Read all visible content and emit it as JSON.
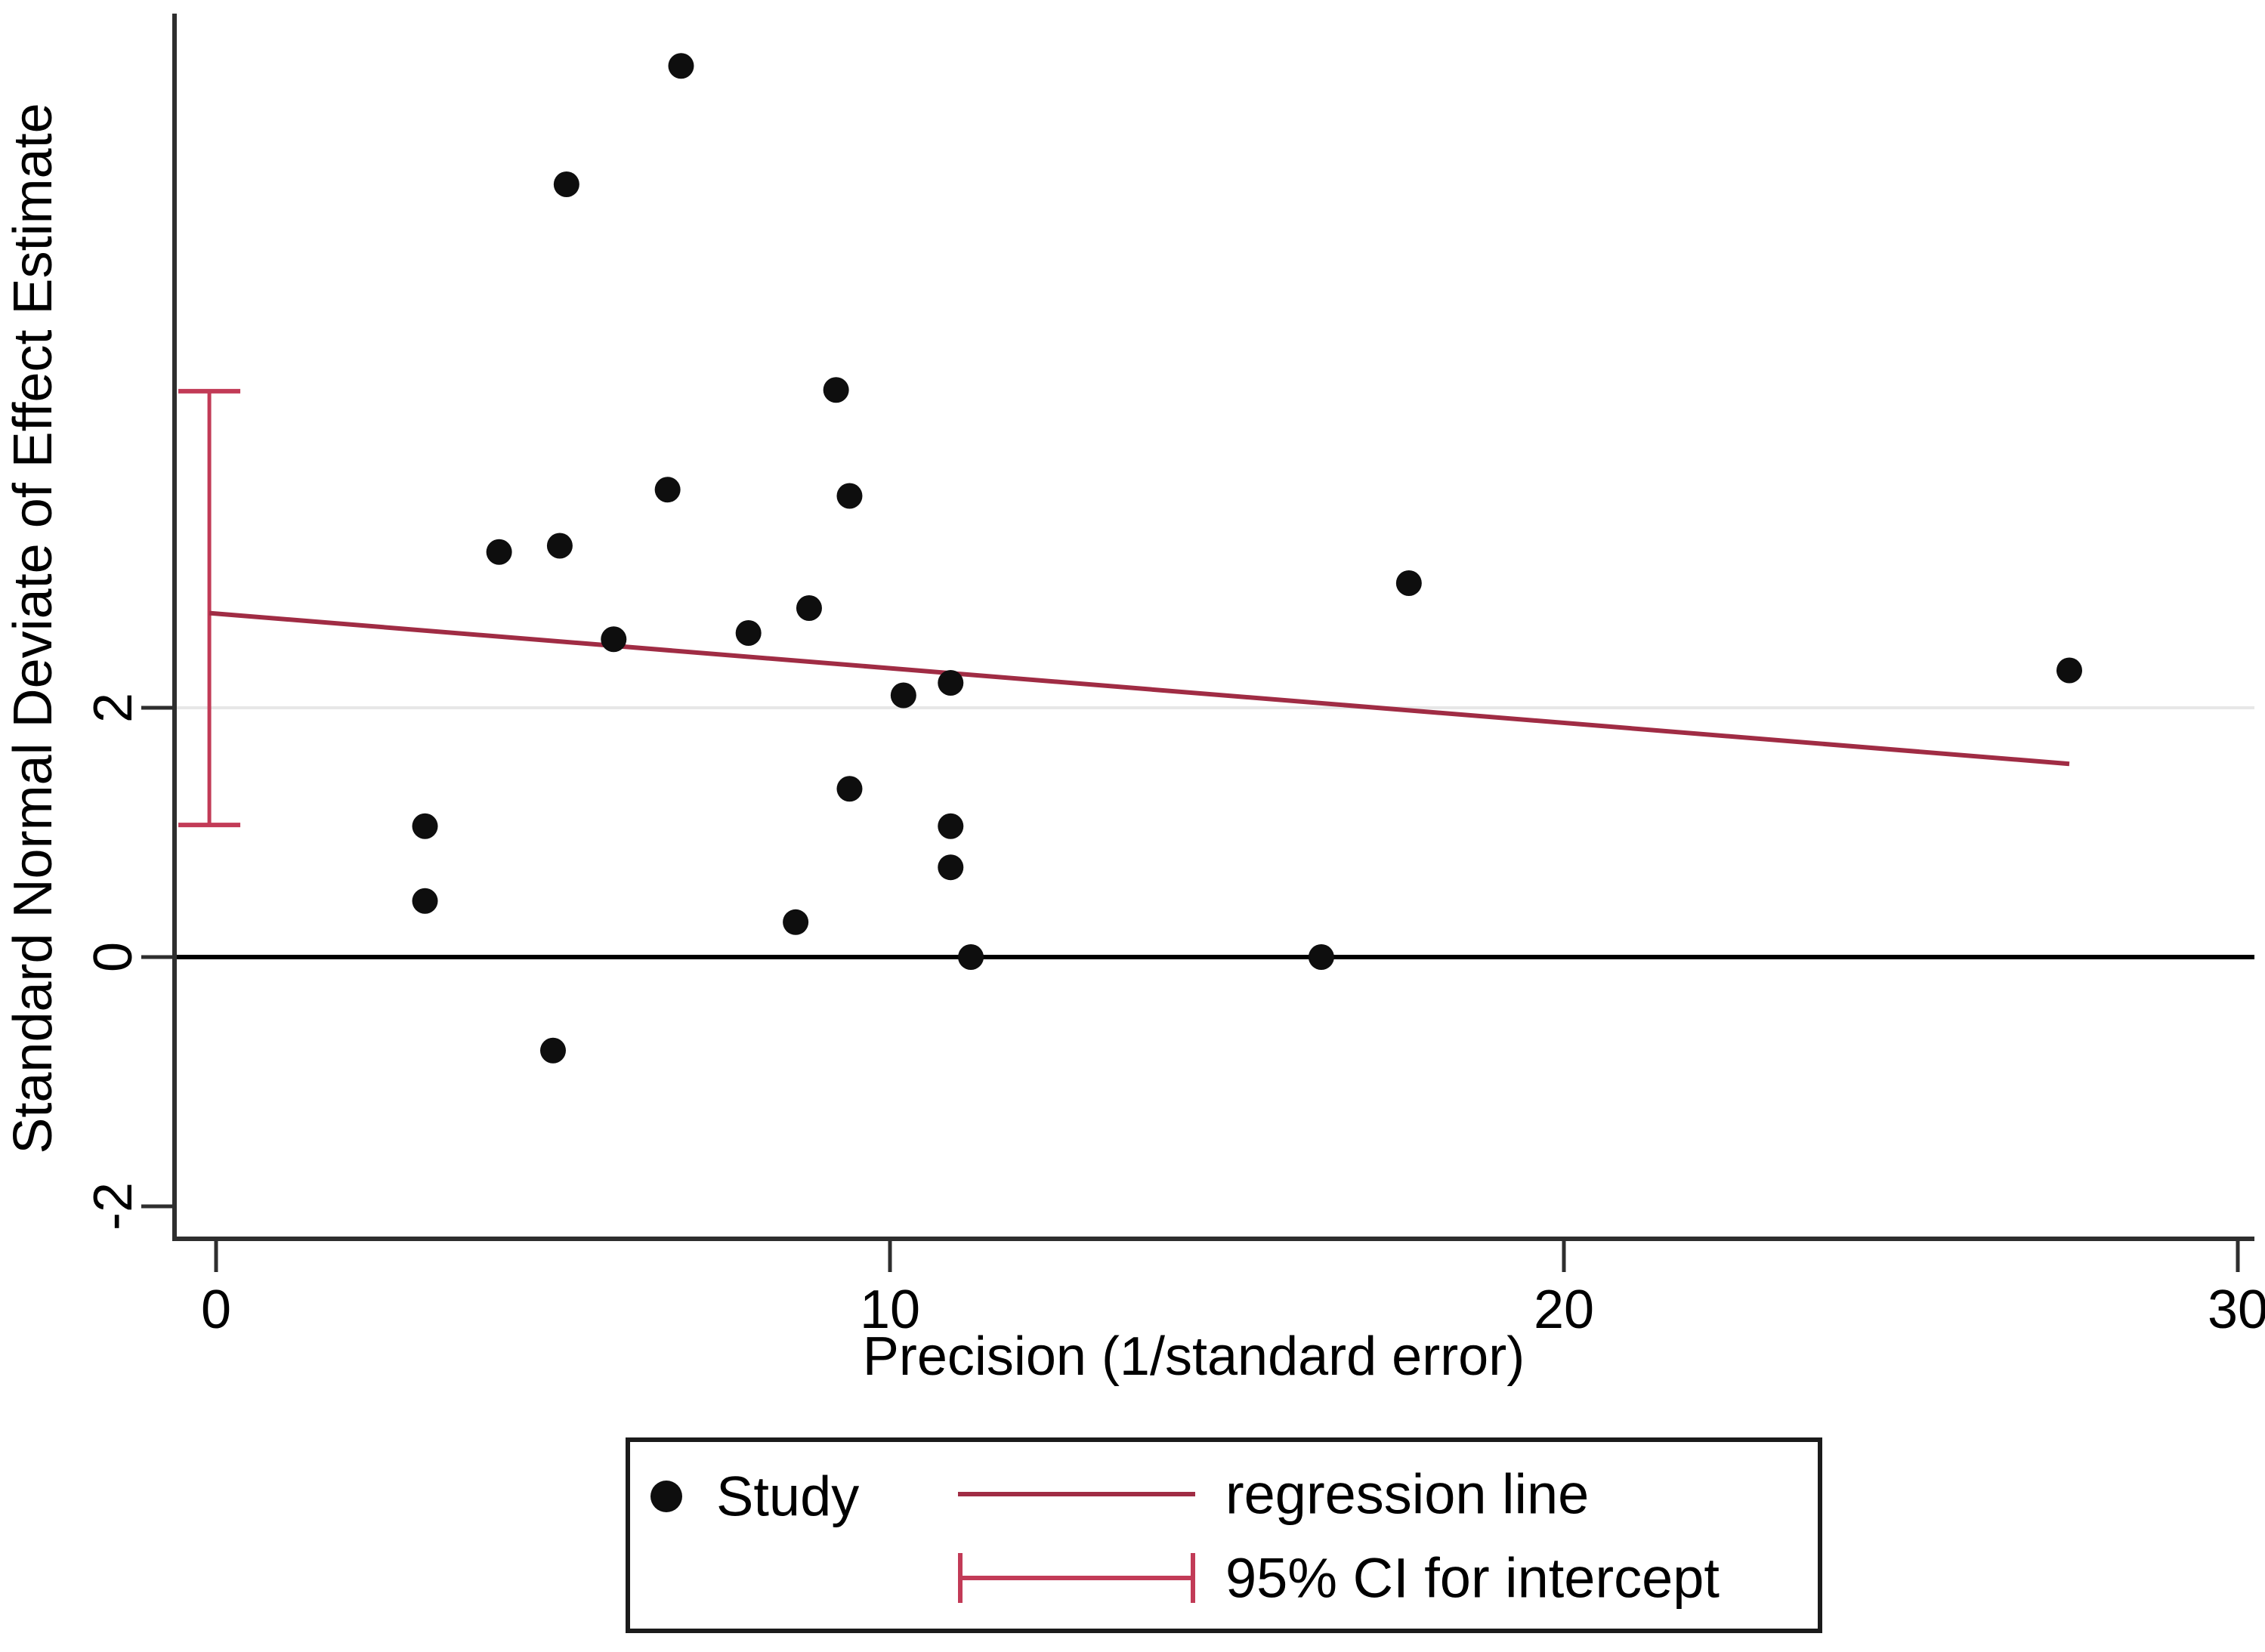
{
  "chart_data": {
    "type": "scatter",
    "title": "",
    "xlabel": "Precision (1/standard error)",
    "ylabel": "Standard Normal Deviate of Effect Estimate",
    "xlim": [
      -0.65,
      30.3
    ],
    "ylim": [
      -2.3,
      7.55
    ],
    "x_ticks": [
      0,
      10,
      20,
      30
    ],
    "y_ticks": [
      -2,
      0,
      2
    ],
    "grid_lines_y": [
      2
    ],
    "reference_line_y": 0,
    "points": [
      [
        6.9,
        7.15
      ],
      [
        5.2,
        6.2
      ],
      [
        9.2,
        4.55
      ],
      [
        6.7,
        3.75
      ],
      [
        4.2,
        3.25
      ],
      [
        5.1,
        3.3
      ],
      [
        9.4,
        3.7
      ],
      [
        17.7,
        3.0
      ],
      [
        5.9,
        2.55
      ],
      [
        7.9,
        2.6
      ],
      [
        8.8,
        2.8
      ],
      [
        27.5,
        2.3
      ],
      [
        10.9,
        2.2
      ],
      [
        10.2,
        2.1
      ],
      [
        9.4,
        1.35
      ],
      [
        3.1,
        1.05
      ],
      [
        10.9,
        1.05
      ],
      [
        10.9,
        0.72
      ],
      [
        3.1,
        0.45
      ],
      [
        8.6,
        0.28
      ],
      [
        11.2,
        0.0
      ],
      [
        16.4,
        0.0
      ],
      [
        5.0,
        -0.75
      ]
    ],
    "regression_line": {
      "x1": -0.1,
      "y1": 2.76,
      "x2": 27.5,
      "y2": 1.55,
      "intercept": 2.76,
      "slope": -0.044
    },
    "ci_intercept": {
      "x": -0.1,
      "lower": 1.06,
      "upper": 4.54
    },
    "legend": {
      "position": "bottom-center",
      "items": [
        {
          "label": "Study",
          "marker": "dot"
        },
        {
          "label": "regression line",
          "marker": "line"
        },
        {
          "label": "95% CI for intercept",
          "marker": "error-bar"
        }
      ]
    },
    "colors": {
      "point": "#0e0e0e",
      "regression": "#a02c44",
      "ci": "#c23b57",
      "axis": "#2e2e2e",
      "zero_line": "#000000",
      "grid": "#e7e7e7",
      "text": "#000000",
      "legend_border": "#1b1b1b"
    }
  }
}
